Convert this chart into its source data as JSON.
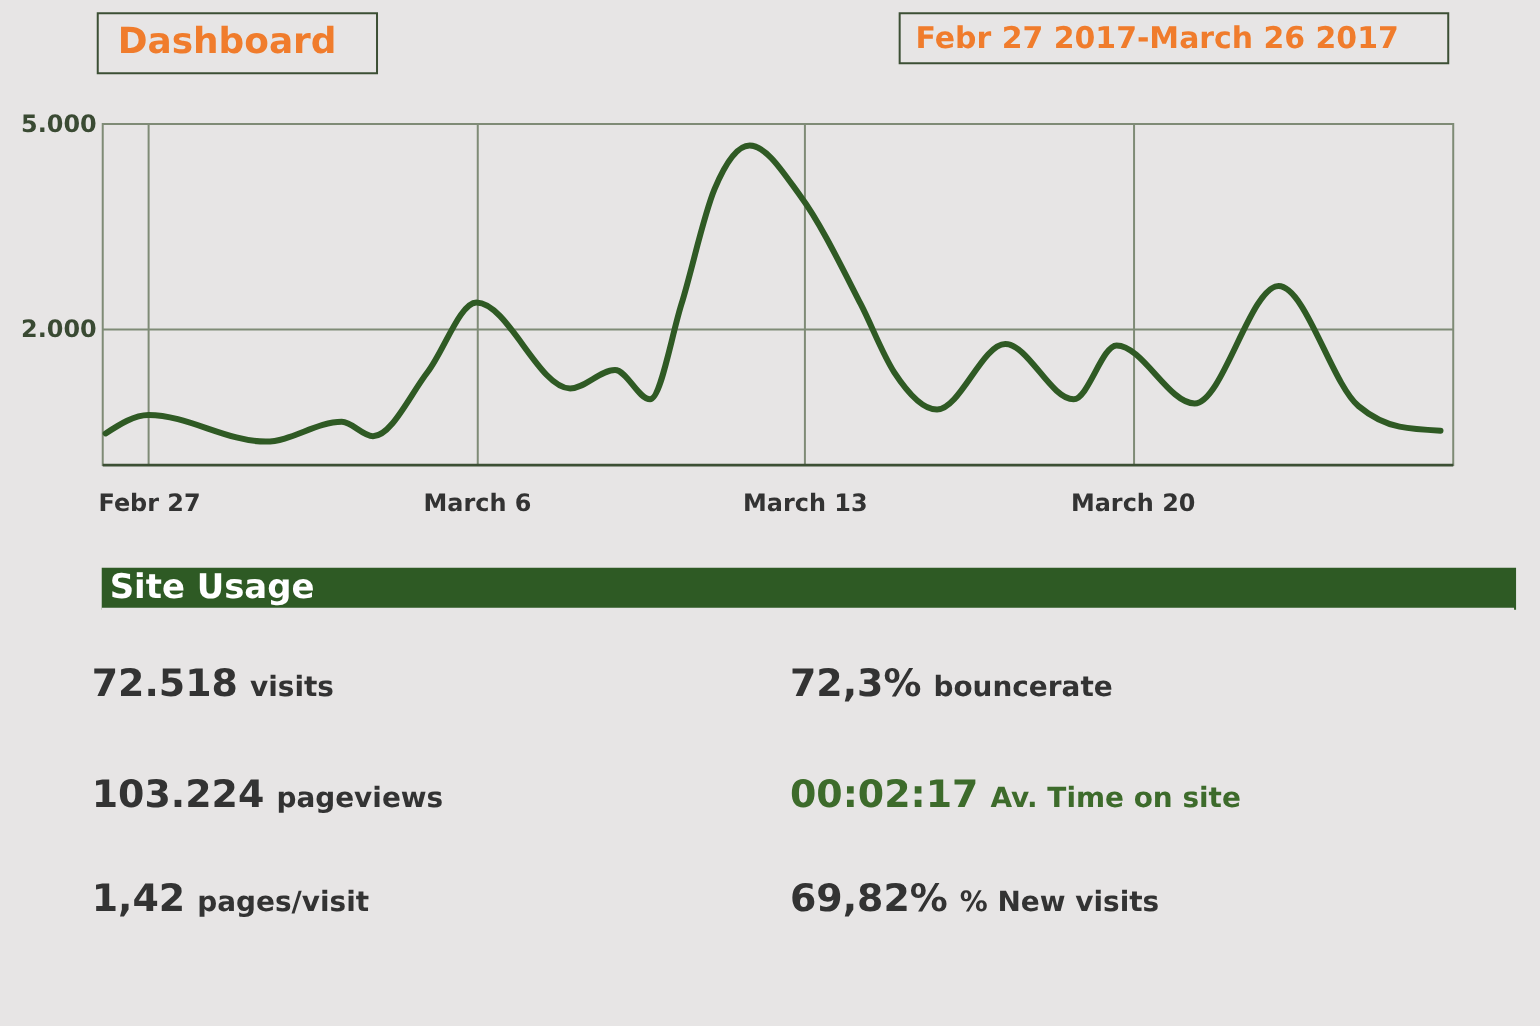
{
  "chart_data": [
    {
      "type": "line",
      "title": "Dashboard",
      "subtitle": "Febr 27 2017-March 26 2017",
      "x": [
        "2017-02-26T02:00",
        "2017-02-27",
        "2017-03-01T12:00",
        "2017-03-03T03:00",
        "2017-03-03T19:00",
        "2017-03-04T23:00",
        "2017-03-06",
        "2017-03-08",
        "2017-03-08T23:00",
        "2017-03-09T17:00",
        "2017-03-10T09:00",
        "2017-03-11T02:00",
        "2017-03-11T20:00",
        "2017-03-12T22:00",
        "2017-03-14T05:00",
        "2017-03-14T22:00",
        "2017-03-15T20:00",
        "2017-03-17T07:00",
        "2017-03-18T18:00",
        "2017-03-19T16:00",
        "2017-03-21T08:00",
        "2017-03-23T03:00",
        "2017-03-24T20:00",
        "2017-03-25T17:00",
        "2017-03-26T14:00"
      ],
      "series": [
        {
          "color": "#2f5a24",
          "values": [
            450,
            720,
            330,
            620,
            410,
            1350,
            2370,
            1110,
            1380,
            950,
            2340,
            4030,
            4670,
            3930,
            2340,
            1350,
            800,
            1760,
            950,
            1740,
            890,
            2610,
            850,
            550,
            490
          ]
        }
      ],
      "xlim": [
        "2017-02-26",
        "2017-03-26T20:00"
      ],
      "xticks": [
        {
          "value": "2017-02-27",
          "label": "Febr 27"
        },
        {
          "value": "2017-03-06",
          "label": "March 6"
        },
        {
          "value": "2017-03-13",
          "label": "March 13"
        },
        {
          "value": "2017-03-20",
          "label": "March 20"
        }
      ],
      "ylim": [
        0,
        5000
      ],
      "yticks": [
        {
          "value": 5000,
          "label": "5.000"
        },
        {
          "value": 2000,
          "label": "2.000"
        }
      ],
      "grid": true
    },
    {
      "type": "other",
      "title": "Site Usage",
      "annotations": [
        "72.518 visits",
        "72,3% bouncerate",
        "103.224 pageviews",
        "00:02:17 Av. Time on site",
        "1,42 pages/visit",
        "69,82% % New visits"
      ],
      "colors": [
        "#333333",
        "#333333",
        "#333333",
        "#3d6b2b",
        "#333333",
        "#333333"
      ]
    }
  ]
}
